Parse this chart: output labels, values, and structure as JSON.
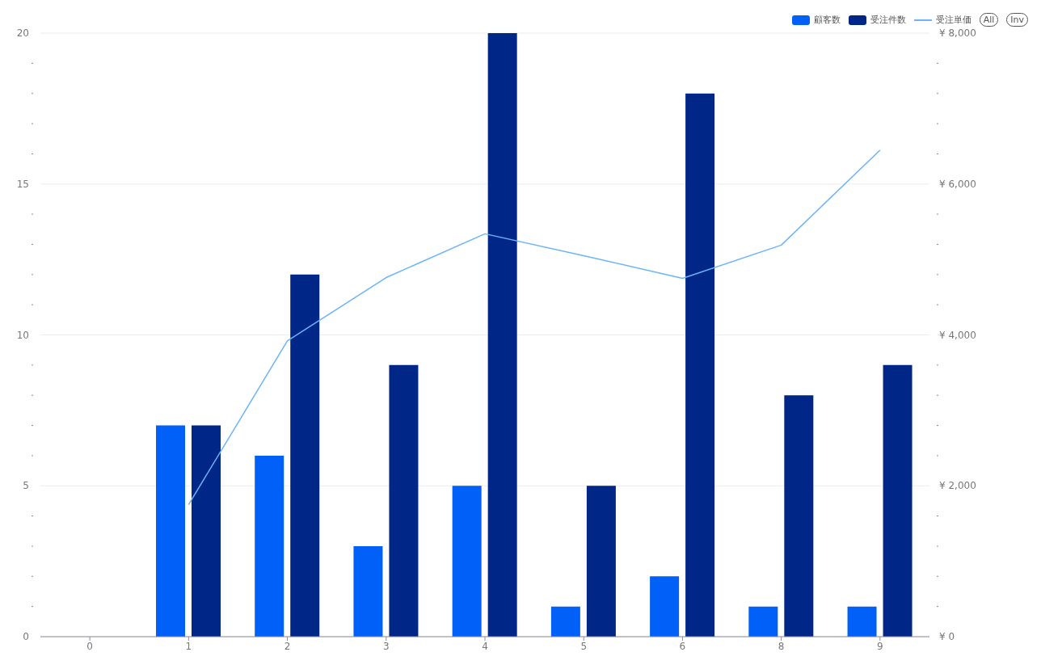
{
  "chart_data": {
    "type": "bar",
    "categories": [
      "0",
      "1",
      "2",
      "3",
      "4",
      "5",
      "6",
      "8",
      "9"
    ],
    "series": [
      {
        "name": "顧客数",
        "color": "#0060f7",
        "values": [
          0,
          7,
          6,
          3,
          5,
          1,
          2,
          1,
          1
        ]
      },
      {
        "name": "受注件数",
        "color": "#002688",
        "values": [
          0,
          7,
          12,
          9,
          20,
          5,
          18,
          8,
          9
        ]
      },
      {
        "name": "受注単価",
        "type": "line",
        "axis": "y2",
        "color": "#6cb4f8",
        "marker": "none",
        "values": [
          null,
          1750,
          3920,
          4760,
          5340,
          5050,
          4750,
          5190,
          6450
        ]
      }
    ],
    "ylim": [
      0,
      20
    ],
    "yticks": [
      0,
      {
        "value": 1,
        "label": null
      },
      {
        "value": 2,
        "label": null
      },
      {
        "value": 3,
        "label": null
      },
      {
        "value": 4,
        "label": null
      },
      5,
      {
        "value": 6,
        "label": null
      },
      {
        "value": 7,
        "label": null
      },
      {
        "value": 8,
        "label": null
      },
      {
        "value": 9,
        "label": null
      },
      10,
      {
        "value": 11,
        "label": null
      },
      {
        "value": 12,
        "label": null
      },
      {
        "value": 13,
        "label": null
      },
      {
        "value": 14,
        "label": null
      },
      15,
      {
        "value": 16,
        "label": null
      },
      {
        "value": 17,
        "label": null
      },
      {
        "value": 18,
        "label": null
      },
      {
        "value": 19,
        "label": null
      },
      20
    ],
    "y2lim": [
      0,
      8000
    ],
    "y2ticks": [
      {
        "value": 0,
        "label": "¥ 0"
      },
      {
        "value": 400,
        "label": null
      },
      {
        "value": 800,
        "label": null
      },
      {
        "value": 1200,
        "label": null
      },
      {
        "value": 1600,
        "label": null
      },
      {
        "value": 2000,
        "label": "¥ 2,000"
      },
      {
        "value": 2400,
        "label": null
      },
      {
        "value": 2800,
        "label": null
      },
      {
        "value": 3200,
        "label": null
      },
      {
        "value": 3600,
        "label": null
      },
      {
        "value": 4000,
        "label": "¥ 4,000"
      },
      {
        "value": 4400,
        "label": null
      },
      {
        "value": 4800,
        "label": null
      },
      {
        "value": 5200,
        "label": null
      },
      {
        "value": 5600,
        "label": null
      },
      {
        "value": 6000,
        "label": "¥ 6,000"
      },
      {
        "value": 6400,
        "label": null
      },
      {
        "value": 6800,
        "label": null
      },
      {
        "value": 7200,
        "label": null
      },
      {
        "value": 7600,
        "label": null
      },
      {
        "value": 8000,
        "label": "¥ 8,000"
      }
    ],
    "grid": "y",
    "legend": "top right",
    "annotations": [
      "All",
      "Inv"
    ]
  }
}
